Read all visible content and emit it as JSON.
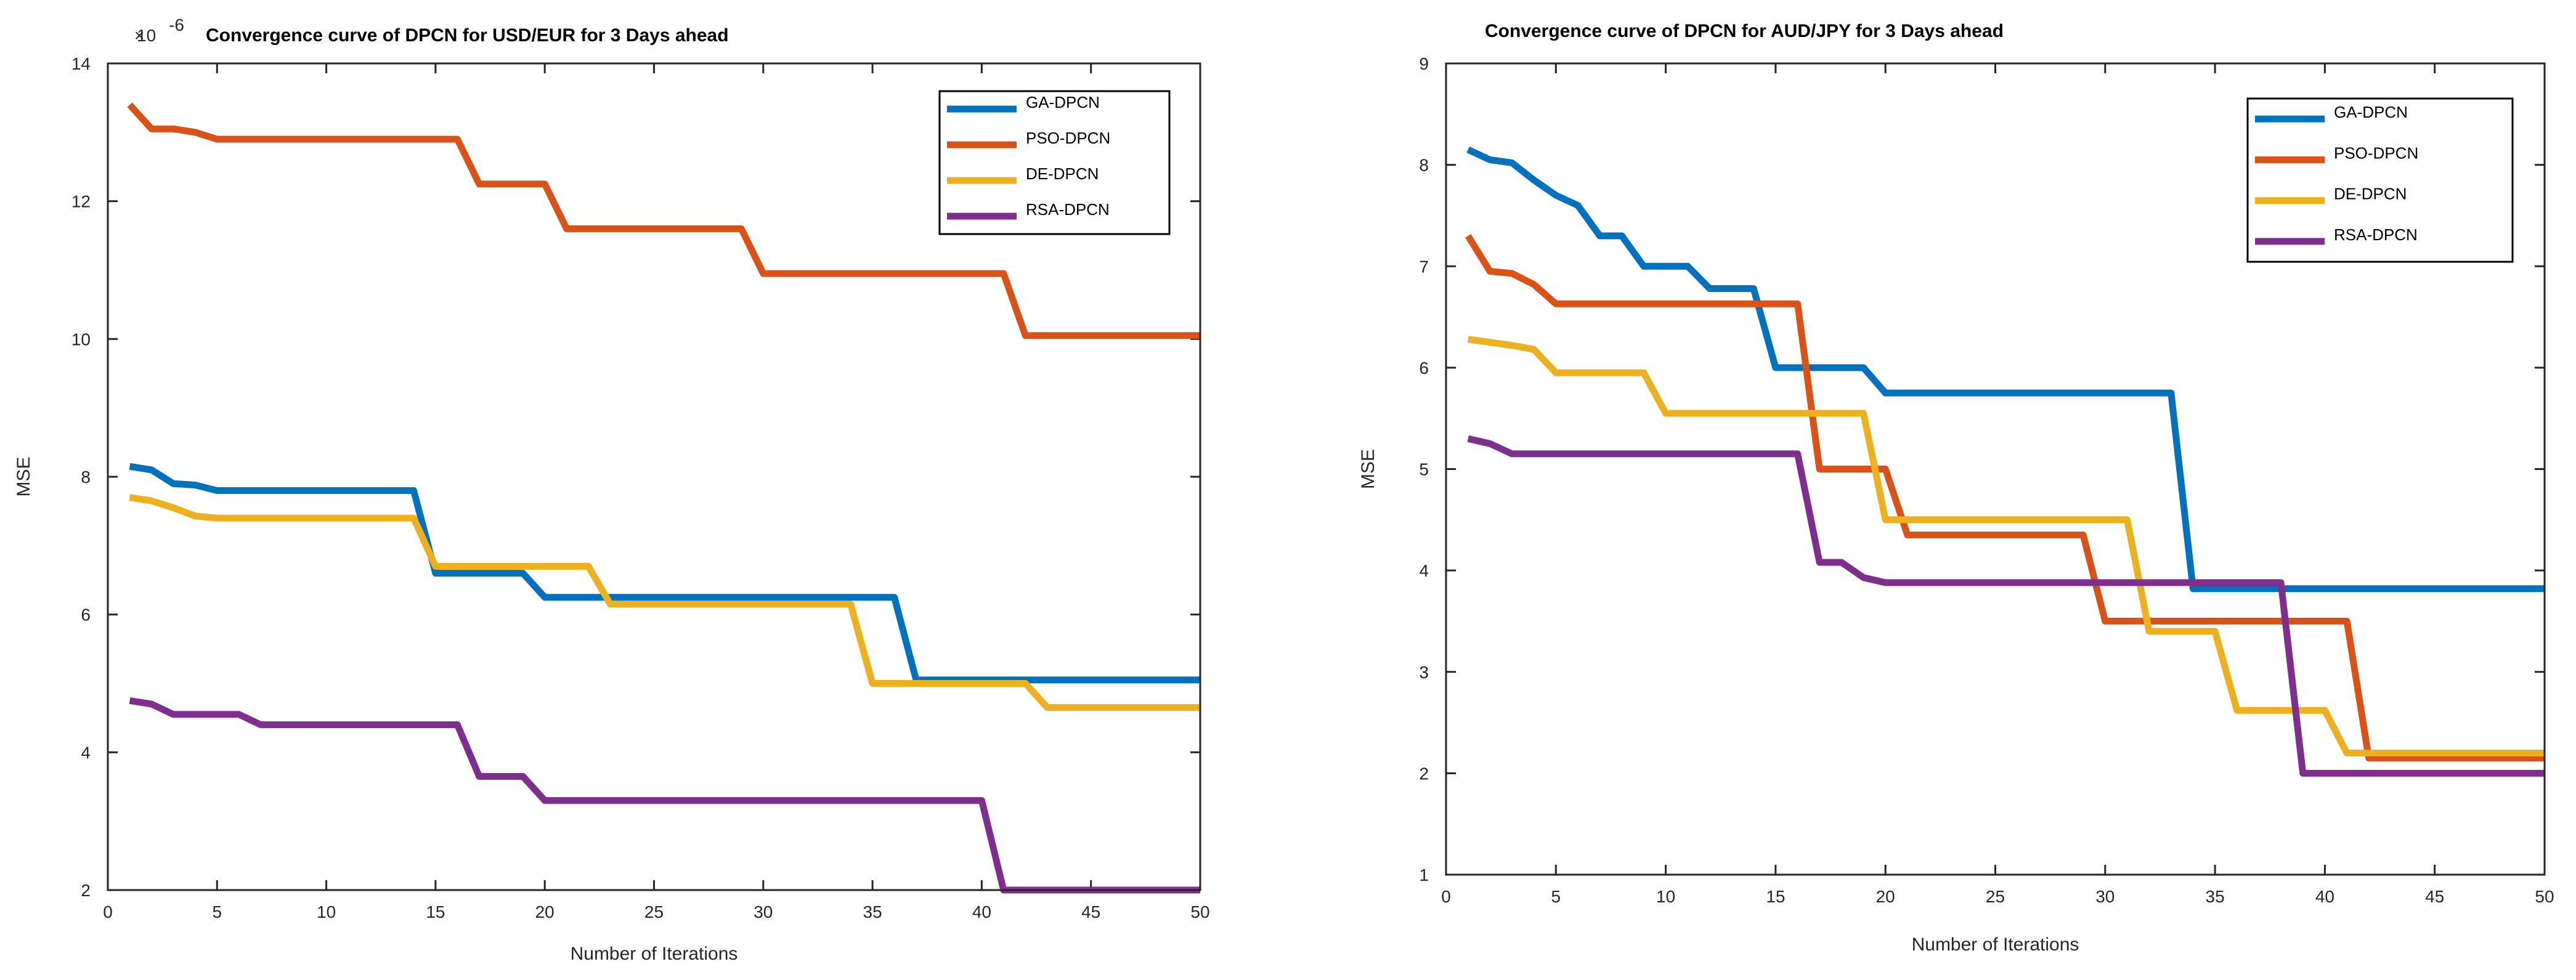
{
  "chart_data": [
    {
      "type": "line",
      "title": "Convergence curve of DPCN for USD/EUR for 3 Days ahead",
      "xlabel": "Number of Iterations",
      "ylabel": "MSE",
      "y_exponent_label": "10",
      "y_exponent_power": "-6",
      "xlim": [
        0,
        50
      ],
      "ylim": [
        2,
        14
      ],
      "xticks": [
        "0",
        "5",
        "10",
        "15",
        "20",
        "25",
        "30",
        "35",
        "40",
        "45",
        "50"
      ],
      "yticks": [
        "2",
        "4",
        "6",
        "8",
        "10",
        "12",
        "14"
      ],
      "legend_position": "top-right",
      "series": [
        {
          "name": "GA-DPCN",
          "color": "#0072BD",
          "x": [
            1,
            2,
            3,
            4,
            5,
            14,
            15,
            19,
            20,
            36,
            37,
            50
          ],
          "values": [
            8.15,
            8.1,
            7.9,
            7.88,
            7.8,
            7.8,
            6.6,
            6.6,
            6.25,
            6.25,
            5.05,
            5.05
          ]
        },
        {
          "name": "PSO-DPCN",
          "color": "#D95319",
          "x": [
            1,
            2,
            3,
            4,
            5,
            16,
            17,
            20,
            21,
            29,
            30,
            41,
            42,
            50
          ],
          "values": [
            13.4,
            13.05,
            13.05,
            13.0,
            12.9,
            12.9,
            12.25,
            12.25,
            11.6,
            11.6,
            10.95,
            10.95,
            10.05,
            10.05
          ]
        },
        {
          "name": "DE-DPCN",
          "color": "#EDB120",
          "x": [
            1,
            2,
            3,
            4,
            5,
            14,
            15,
            22,
            23,
            34,
            35,
            42,
            43,
            50
          ],
          "values": [
            7.7,
            7.65,
            7.55,
            7.43,
            7.4,
            7.4,
            6.7,
            6.7,
            6.15,
            6.15,
            5.0,
            5.0,
            4.65,
            4.65
          ]
        },
        {
          "name": "RSA-DPCN",
          "color": "#7E2F8E",
          "x": [
            1,
            2,
            3,
            6,
            7,
            16,
            17,
            19,
            20,
            40,
            41,
            50
          ],
          "values": [
            4.75,
            4.7,
            4.55,
            4.55,
            4.4,
            4.4,
            3.65,
            3.65,
            3.3,
            3.3,
            2.0,
            2.0
          ]
        }
      ]
    },
    {
      "type": "line",
      "title": "Convergence curve of DPCN for AUD/JPY for 3 Days ahead",
      "xlabel": "Number of Iterations",
      "ylabel": "MSE",
      "xlim": [
        0,
        50
      ],
      "ylim": [
        1,
        9
      ],
      "xticks": [
        "0",
        "5",
        "10",
        "15",
        "20",
        "25",
        "30",
        "35",
        "40",
        "45",
        "50"
      ],
      "yticks": [
        "1",
        "2",
        "3",
        "4",
        "5",
        "6",
        "7",
        "8",
        "9"
      ],
      "legend_position": "top-right",
      "series": [
        {
          "name": "GA-DPCN",
          "color": "#0072BD",
          "x": [
            1,
            2,
            3,
            4,
            5,
            6,
            7,
            8,
            9,
            11,
            12,
            14,
            15,
            19,
            20,
            33,
            34,
            50
          ],
          "values": [
            8.15,
            8.05,
            8.02,
            7.85,
            7.7,
            7.6,
            7.3,
            7.3,
            7.0,
            7.0,
            6.78,
            6.78,
            6.0,
            6.0,
            5.75,
            5.75,
            3.82,
            3.82
          ]
        },
        {
          "name": "PSO-DPCN",
          "color": "#D95319",
          "x": [
            1,
            2,
            3,
            4,
            5,
            16,
            17,
            20,
            21,
            29,
            30,
            41,
            42,
            50
          ],
          "values": [
            7.3,
            6.95,
            6.93,
            6.82,
            6.63,
            6.63,
            5.0,
            5.0,
            4.35,
            4.35,
            3.5,
            3.5,
            2.15,
            2.15
          ]
        },
        {
          "name": "DE-DPCN",
          "color": "#EDB120",
          "x": [
            1,
            2,
            3,
            4,
            5,
            9,
            10,
            19,
            20,
            31,
            32,
            35,
            36,
            40,
            41,
            50
          ],
          "values": [
            6.28,
            6.25,
            6.22,
            6.18,
            5.95,
            5.95,
            5.55,
            5.55,
            4.5,
            4.5,
            3.4,
            3.4,
            2.62,
            2.62,
            2.2,
            2.2
          ]
        },
        {
          "name": "RSA-DPCN",
          "color": "#7E2F8E",
          "x": [
            1,
            2,
            3,
            16,
            17,
            18,
            19,
            20,
            38,
            39,
            50
          ],
          "values": [
            5.3,
            5.25,
            5.15,
            5.15,
            4.08,
            4.08,
            3.93,
            3.88,
            3.88,
            2.0,
            2.0
          ]
        }
      ]
    }
  ]
}
